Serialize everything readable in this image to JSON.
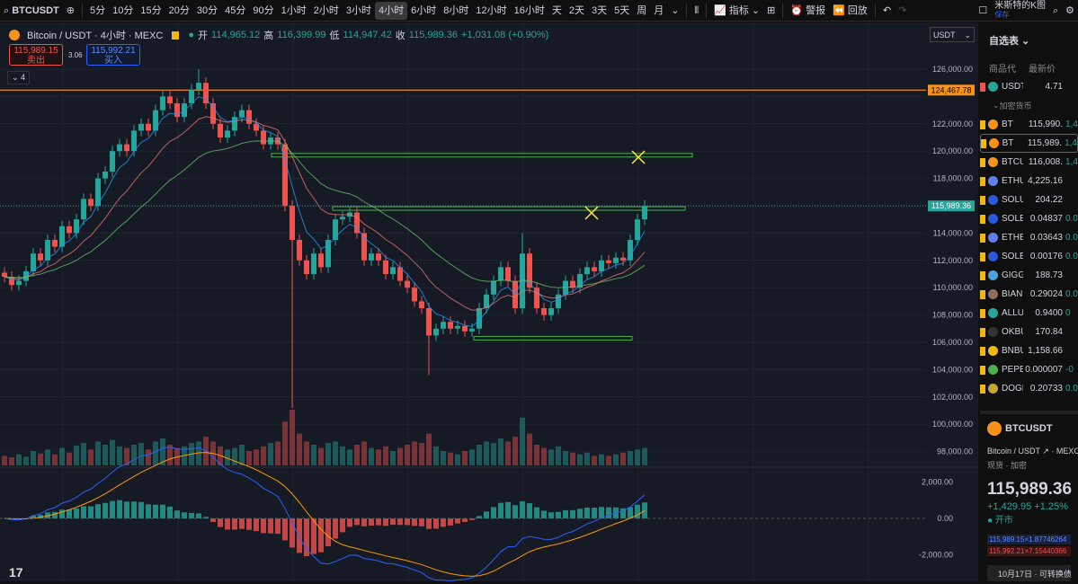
{
  "toolbar": {
    "symbol": "BTCUSDT",
    "intervals": [
      "5分",
      "10分",
      "15分",
      "20分",
      "30分",
      "45分",
      "90分",
      "1小时",
      "2小时",
      "3小时",
      "4小时",
      "6小时",
      "8小时",
      "12小时",
      "16小时",
      "天",
      "2天",
      "3天",
      "5天",
      "周",
      "月"
    ],
    "active_interval": "4小时",
    "indicators": "指标",
    "alerts": "警报",
    "replay": "回放",
    "layout_name": "米斯特的K图",
    "layout_status": "保存"
  },
  "legend": {
    "title": "Bitcoin / USDT · 4小时 · MEXC",
    "open_label": "开",
    "open": "114,965.12",
    "high_label": "高",
    "high": "116,399.99",
    "low_label": "低",
    "low": "114,947.42",
    "close_label": "收",
    "close": "115,989.36",
    "change": "+1,031.08 (+0.90%)",
    "sell_price": "115,989.15",
    "sell_label": "卖出",
    "spread": "3.06",
    "buy_price": "115,992.21",
    "buy_label": "买入",
    "indicators_count": "4"
  },
  "price_axis": {
    "currency": "USDT",
    "ticks": [
      126000,
      124000,
      122000,
      120000,
      118000,
      116000,
      114000,
      112000,
      110000,
      108000,
      106000,
      104000,
      102000,
      100000,
      98000
    ],
    "tick_labels": [
      "126,000.00",
      "",
      "122,000.00",
      "120,000.00",
      "118,000.00",
      "",
      "114,000.00",
      "112,000.00",
      "110,000.00",
      "108,000.00",
      "106,000.00",
      "104,000.00",
      "102,000.00",
      "100,000.00",
      "98,000.00"
    ],
    "current_price": "115,989.36",
    "alert_line_label": "124,467.78"
  },
  "macd_axis": {
    "ticks": [
      2000,
      0,
      -2000
    ],
    "tick_labels": [
      "2,000.00",
      "0.00",
      "-2,000.00"
    ]
  },
  "colors": {
    "up": "#26a69a",
    "down": "#ef5350",
    "alert_line": "#f7931a",
    "zone": "#4caf50",
    "marker": "#ffeb3b",
    "ma_fast": "#2196f3",
    "ma_mid": "#e57373",
    "ma_slow": "#66bb6a",
    "macd": "#2962ff",
    "signal": "#ff9800"
  },
  "chart_data": {
    "type": "candlestick",
    "interval": "4小时",
    "closes": [
      110800,
      110200,
      110500,
      111200,
      112500,
      112000,
      113500,
      113000,
      114500,
      114000,
      115000,
      116500,
      116000,
      118000,
      118500,
      120000,
      120500,
      120000,
      121500,
      122000,
      121500,
      123000,
      124000,
      123500,
      122500,
      123500,
      124500,
      125000,
      123500,
      122000,
      121000,
      121500,
      122500,
      123000,
      122000,
      121500,
      120500,
      121000,
      120500,
      116000,
      113500,
      112000,
      111000,
      112500,
      111500,
      113500,
      115000,
      115200,
      115500,
      114000,
      112000,
      112500,
      112000,
      111000,
      111500,
      110500,
      110000,
      109000,
      108500,
      106500,
      107000,
      107500,
      107000,
      107200,
      106800,
      107000,
      108500,
      109500,
      110500,
      111500,
      110500,
      108500,
      112500,
      110000,
      108500,
      108000,
      108500,
      109500,
      110500,
      110000,
      111000,
      111500,
      111200,
      112000,
      111800,
      112200,
      112000,
      113500,
      115000,
      115989.36
    ],
    "wick_extremes": [
      {
        "index": 27,
        "high": 126000
      },
      {
        "index": 40,
        "low": 101200
      },
      {
        "index": 59,
        "low": 103600
      },
      {
        "index": 72,
        "high": 114000
      },
      {
        "index": 89,
        "high": 116400
      }
    ],
    "volumes": [
      12,
      10,
      14,
      11,
      18,
      15,
      20,
      14,
      22,
      16,
      25,
      28,
      20,
      30,
      26,
      32,
      24,
      22,
      26,
      28,
      20,
      30,
      34,
      26,
      22,
      24,
      28,
      30,
      36,
      30,
      24,
      20,
      22,
      26,
      18,
      20,
      24,
      28,
      30,
      55,
      70,
      40,
      30,
      26,
      22,
      28,
      30,
      24,
      20,
      26,
      30,
      22,
      20,
      24,
      18,
      22,
      26,
      30,
      28,
      40,
      24,
      18,
      16,
      14,
      18,
      20,
      26,
      30,
      28,
      34,
      30,
      36,
      60,
      40,
      26,
      22,
      20,
      24,
      18,
      16,
      14,
      16,
      12,
      14,
      12,
      14,
      16,
      18,
      20,
      22
    ],
    "price_levels": [
      {
        "price": 124467.78,
        "kind": "alert-line"
      },
      {
        "price": 119700,
        "kind": "zone"
      },
      {
        "price": 115800,
        "kind": "zone"
      },
      {
        "price": 106300,
        "kind": "zone"
      }
    ]
  },
  "watchlist": {
    "title": "自选表",
    "col_symbol": "商品代",
    "col_last": "最新价",
    "group": "加密货币",
    "items": [
      {
        "sym": "USDT",
        "last": "4.71",
        "chg": "",
        "coin": "#26a69a"
      },
      {
        "sym": "BT",
        "last": "115,990.",
        "chg": "1,4",
        "coin": "#f7931a"
      },
      {
        "sym": "BT",
        "last": "115,989.",
        "chg": "1,4",
        "coin": "#f7931a"
      },
      {
        "sym": "BTCU",
        "last": "116,008.",
        "chg": "1,4",
        "coin": "#f7931a"
      },
      {
        "sym": "ETHU",
        "last": "4,225.16",
        "chg": "",
        "coin": "#627eea"
      },
      {
        "sym": "SOLU",
        "last": "204.22",
        "chg": "",
        "coin": "#2a5ada"
      },
      {
        "sym": "SOLE",
        "last": "0.04837",
        "chg": "0.0",
        "coin": "#2a5ada"
      },
      {
        "sym": "ETHB",
        "last": "0.03643",
        "chg": "0.0",
        "coin": "#627eea"
      },
      {
        "sym": "SOLB",
        "last": "0.00176",
        "chg": "0.0",
        "coin": "#2a5ada"
      },
      {
        "sym": "GIGG",
        "last": "188.73",
        "chg": "",
        "coin": "#4aa3df"
      },
      {
        "sym": "BIANI",
        "last": "0.29024",
        "chg": "0.0",
        "coin": "#8d6e63"
      },
      {
        "sym": "ALLU",
        "last": "0.9400",
        "chg": "0",
        "coin": "#26a69a"
      },
      {
        "sym": "OKBU",
        "last": "170.84",
        "chg": "",
        "coin": "#333"
      },
      {
        "sym": "BNBU",
        "last": "1,158.66",
        "chg": "",
        "coin": "#f0b90b"
      },
      {
        "sym": "PEPE",
        "last": "0.000007",
        "chg": "-0",
        "coin": "#4caf50"
      },
      {
        "sym": "DOGE",
        "last": "0.20733",
        "chg": "0.0",
        "coin": "#c2a633"
      }
    ]
  },
  "detail": {
    "symbol": "BTCUSDT",
    "name": "Bitcoin / USDT",
    "exchange": "MEXC",
    "category": "现货 · 加密",
    "price": "115,989.36",
    "change": "+1,429.95",
    "change_pct": "+1.25%",
    "status": "开市",
    "bid": "115,989.15×1.87746264",
    "ask": "115,992.21×7.15440366",
    "news": "10月17日 · 可转换债"
  }
}
